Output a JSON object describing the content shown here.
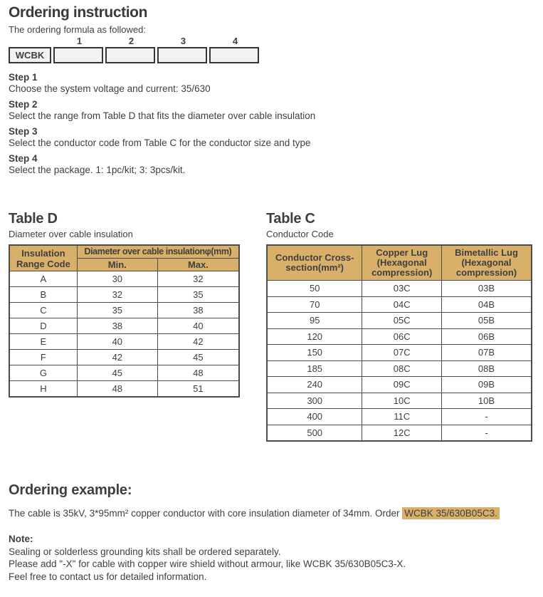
{
  "colors": {
    "gold": "#d8b069",
    "ink": "#3f3f3f",
    "border": "#4c4c4c"
  },
  "header": {
    "title": "Ordering instruction",
    "formula_intro": "The ordering formula as followed:"
  },
  "formula": {
    "prefix": "WCBK",
    "slots": [
      "1",
      "2",
      "3",
      "4"
    ]
  },
  "steps": [
    {
      "label": "Step 1",
      "text": "Choose the system voltage and current: 35/630"
    },
    {
      "label": "Step 2",
      "text": "Select the range from Table D that fits the diameter over cable insulation"
    },
    {
      "label": "Step 3",
      "text": "Select the conductor code from Table C for the conductor size and type"
    },
    {
      "label": "Step 4",
      "text": "Select the package. 1: 1pc/kit; 3: 3pcs/kit."
    }
  ],
  "table_d": {
    "title": "Table D",
    "subtitle": "Diameter over cable insulation",
    "col1_header": "Insulation Range Code",
    "span_header": "Diameter over cable insulationφ(mm)",
    "min_header": "Min.",
    "max_header": "Max.",
    "rows": [
      {
        "code": "A",
        "min": "30",
        "max": "32"
      },
      {
        "code": "B",
        "min": "32",
        "max": "35"
      },
      {
        "code": "C",
        "min": "35",
        "max": "38"
      },
      {
        "code": "D",
        "min": "38",
        "max": "40"
      },
      {
        "code": "E",
        "min": "40",
        "max": "42"
      },
      {
        "code": "F",
        "min": "42",
        "max": "45"
      },
      {
        "code": "G",
        "min": "45",
        "max": "48"
      },
      {
        "code": "H",
        "min": "48",
        "max": "51"
      }
    ]
  },
  "table_c": {
    "title": "Table C",
    "subtitle": "Conductor Code",
    "col1_header": "Conductor Cross-section(mm²)",
    "col2_header": "Copper Lug (Hexagonal compression)",
    "col3_header": "Bimetallic Lug (Hexagonal compression)",
    "rows": [
      {
        "size": "50",
        "copper": "03C",
        "bimetallic": "03B"
      },
      {
        "size": "70",
        "copper": "04C",
        "bimetallic": "04B"
      },
      {
        "size": "95",
        "copper": "05C",
        "bimetallic": "05B"
      },
      {
        "size": "120",
        "copper": "06C",
        "bimetallic": "06B"
      },
      {
        "size": "150",
        "copper": "07C",
        "bimetallic": "07B"
      },
      {
        "size": "185",
        "copper": "08C",
        "bimetallic": "08B"
      },
      {
        "size": "240",
        "copper": "09C",
        "bimetallic": "09B"
      },
      {
        "size": "300",
        "copper": "10C",
        "bimetallic": "10B"
      },
      {
        "size": "400",
        "copper": "11C",
        "bimetallic": "-"
      },
      {
        "size": "500",
        "copper": "12C",
        "bimetallic": "-"
      }
    ]
  },
  "example": {
    "title": "Ordering example:",
    "text": "The cable is 35kV, 3*95mm² copper conductor with core insulation diameter of 34mm. Order ",
    "highlight": "WCBK 35/630B05C3."
  },
  "note": {
    "label": "Note:",
    "lines": [
      "Sealing or solderless grounding kits shall be ordered separately.",
      "Please add \"-X\" for cable with copper wire shield without armour,  like WCBK 35/630B05C3-X.",
      "Feel free to contact us for detailed information."
    ]
  }
}
